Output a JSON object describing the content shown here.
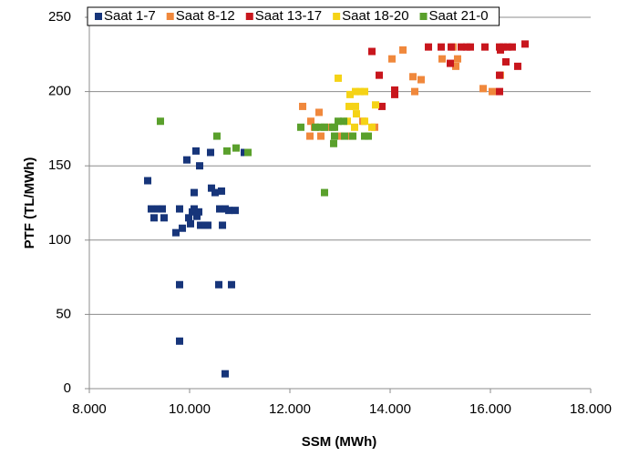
{
  "chart_data": {
    "type": "scatter",
    "xlabel": "SSM (MWh)",
    "ylabel": "PTF (TL/MWh)",
    "xlim": [
      8000,
      18000
    ],
    "xticks": [
      {
        "value": 8000,
        "label": "8.000"
      },
      {
        "value": 10000,
        "label": "10.000"
      },
      {
        "value": 12000,
        "label": "12.000"
      },
      {
        "value": 14000,
        "label": "14.000"
      },
      {
        "value": 16000,
        "label": "16.000"
      },
      {
        "value": 18000,
        "label": "18.000"
      }
    ],
    "ylim": [
      0,
      250
    ],
    "yticks": [
      0,
      50,
      100,
      150,
      200,
      250
    ],
    "grid": true,
    "legend": "top",
    "series": [
      {
        "name": "Saat 1-7",
        "color": "#17357a",
        "x": [
          9164,
          9236,
          9364,
          9291,
          9491,
          9455,
          9727,
          9800,
          9855,
          9945,
          9982,
          10018,
          10055,
          10091,
          10127,
          10091,
          10145,
          10182,
          10200,
          10218,
          10309,
          10364,
          10418,
          10436,
          10509,
          10636,
          10600,
          10655,
          10709,
          10782,
          10909,
          11091,
          9800,
          10582,
          10836,
          9800,
          10709
        ],
        "values": [
          140,
          121,
          121,
          115,
          115,
          121,
          105,
          121,
          108,
          154,
          115,
          111,
          119,
          132,
          160,
          121,
          116,
          119,
          150,
          110,
          110,
          110,
          159,
          135,
          132,
          133,
          121,
          110,
          121,
          120,
          120,
          159,
          70,
          70,
          70,
          32,
          10
        ]
      },
      {
        "name": "Saat 8-12",
        "color": "#f0883c",
        "x": [
          12255,
          12418,
          12582,
          12400,
          12618,
          12490,
          12764,
          13000,
          13218,
          13455,
          13691,
          14036,
          14255,
          14455,
          14491,
          14618,
          15036,
          15255,
          15345,
          15309,
          15855,
          16036,
          16200
        ],
        "values": [
          190,
          180,
          186,
          170,
          170,
          176,
          176,
          170,
          170,
          180,
          176,
          222,
          228,
          210,
          200,
          208,
          222,
          230,
          222,
          217,
          202,
          200,
          211
        ]
      },
      {
        "name": "Saat 13-17",
        "color": "#c8161d",
        "x": [
          13636,
          13782,
          13836,
          14091,
          14091,
          14764,
          15018,
          15218,
          15200,
          15418,
          15527,
          15600,
          15891,
          16182,
          16255,
          16345,
          16436,
          16200,
          16309,
          16182,
          16545,
          16691,
          16182
        ],
        "values": [
          227,
          211,
          190,
          201,
          198,
          230,
          230,
          230,
          219,
          230,
          230,
          230,
          230,
          230,
          230,
          230,
          230,
          228,
          220,
          200,
          217,
          232,
          211
        ]
      },
      {
        "name": "Saat 18-20",
        "color": "#f5d316",
        "x": [
          12964,
          13200,
          13309,
          13400,
          13491,
          13182,
          13309,
          13327,
          13291,
          13491,
          13636,
          13709,
          13145
        ],
        "values": [
          209,
          198,
          200,
          200,
          200,
          190,
          190,
          185,
          176,
          180,
          176,
          191,
          180
        ]
      },
      {
        "name": "Saat 21-0",
        "color": "#5aa02c",
        "x": [
          9418,
          10545,
          10745,
          10927,
          11164,
          12218,
          12509,
          12618,
          12691,
          12855,
          12891,
          12873,
          12964,
          13073,
          13091,
          13255,
          13491,
          13564,
          12691,
          12891
        ],
        "values": [
          180,
          170,
          160,
          162,
          159,
          176,
          176,
          176,
          176,
          176,
          170,
          165,
          180,
          180,
          170,
          170,
          170,
          170,
          132,
          176
        ]
      }
    ]
  }
}
